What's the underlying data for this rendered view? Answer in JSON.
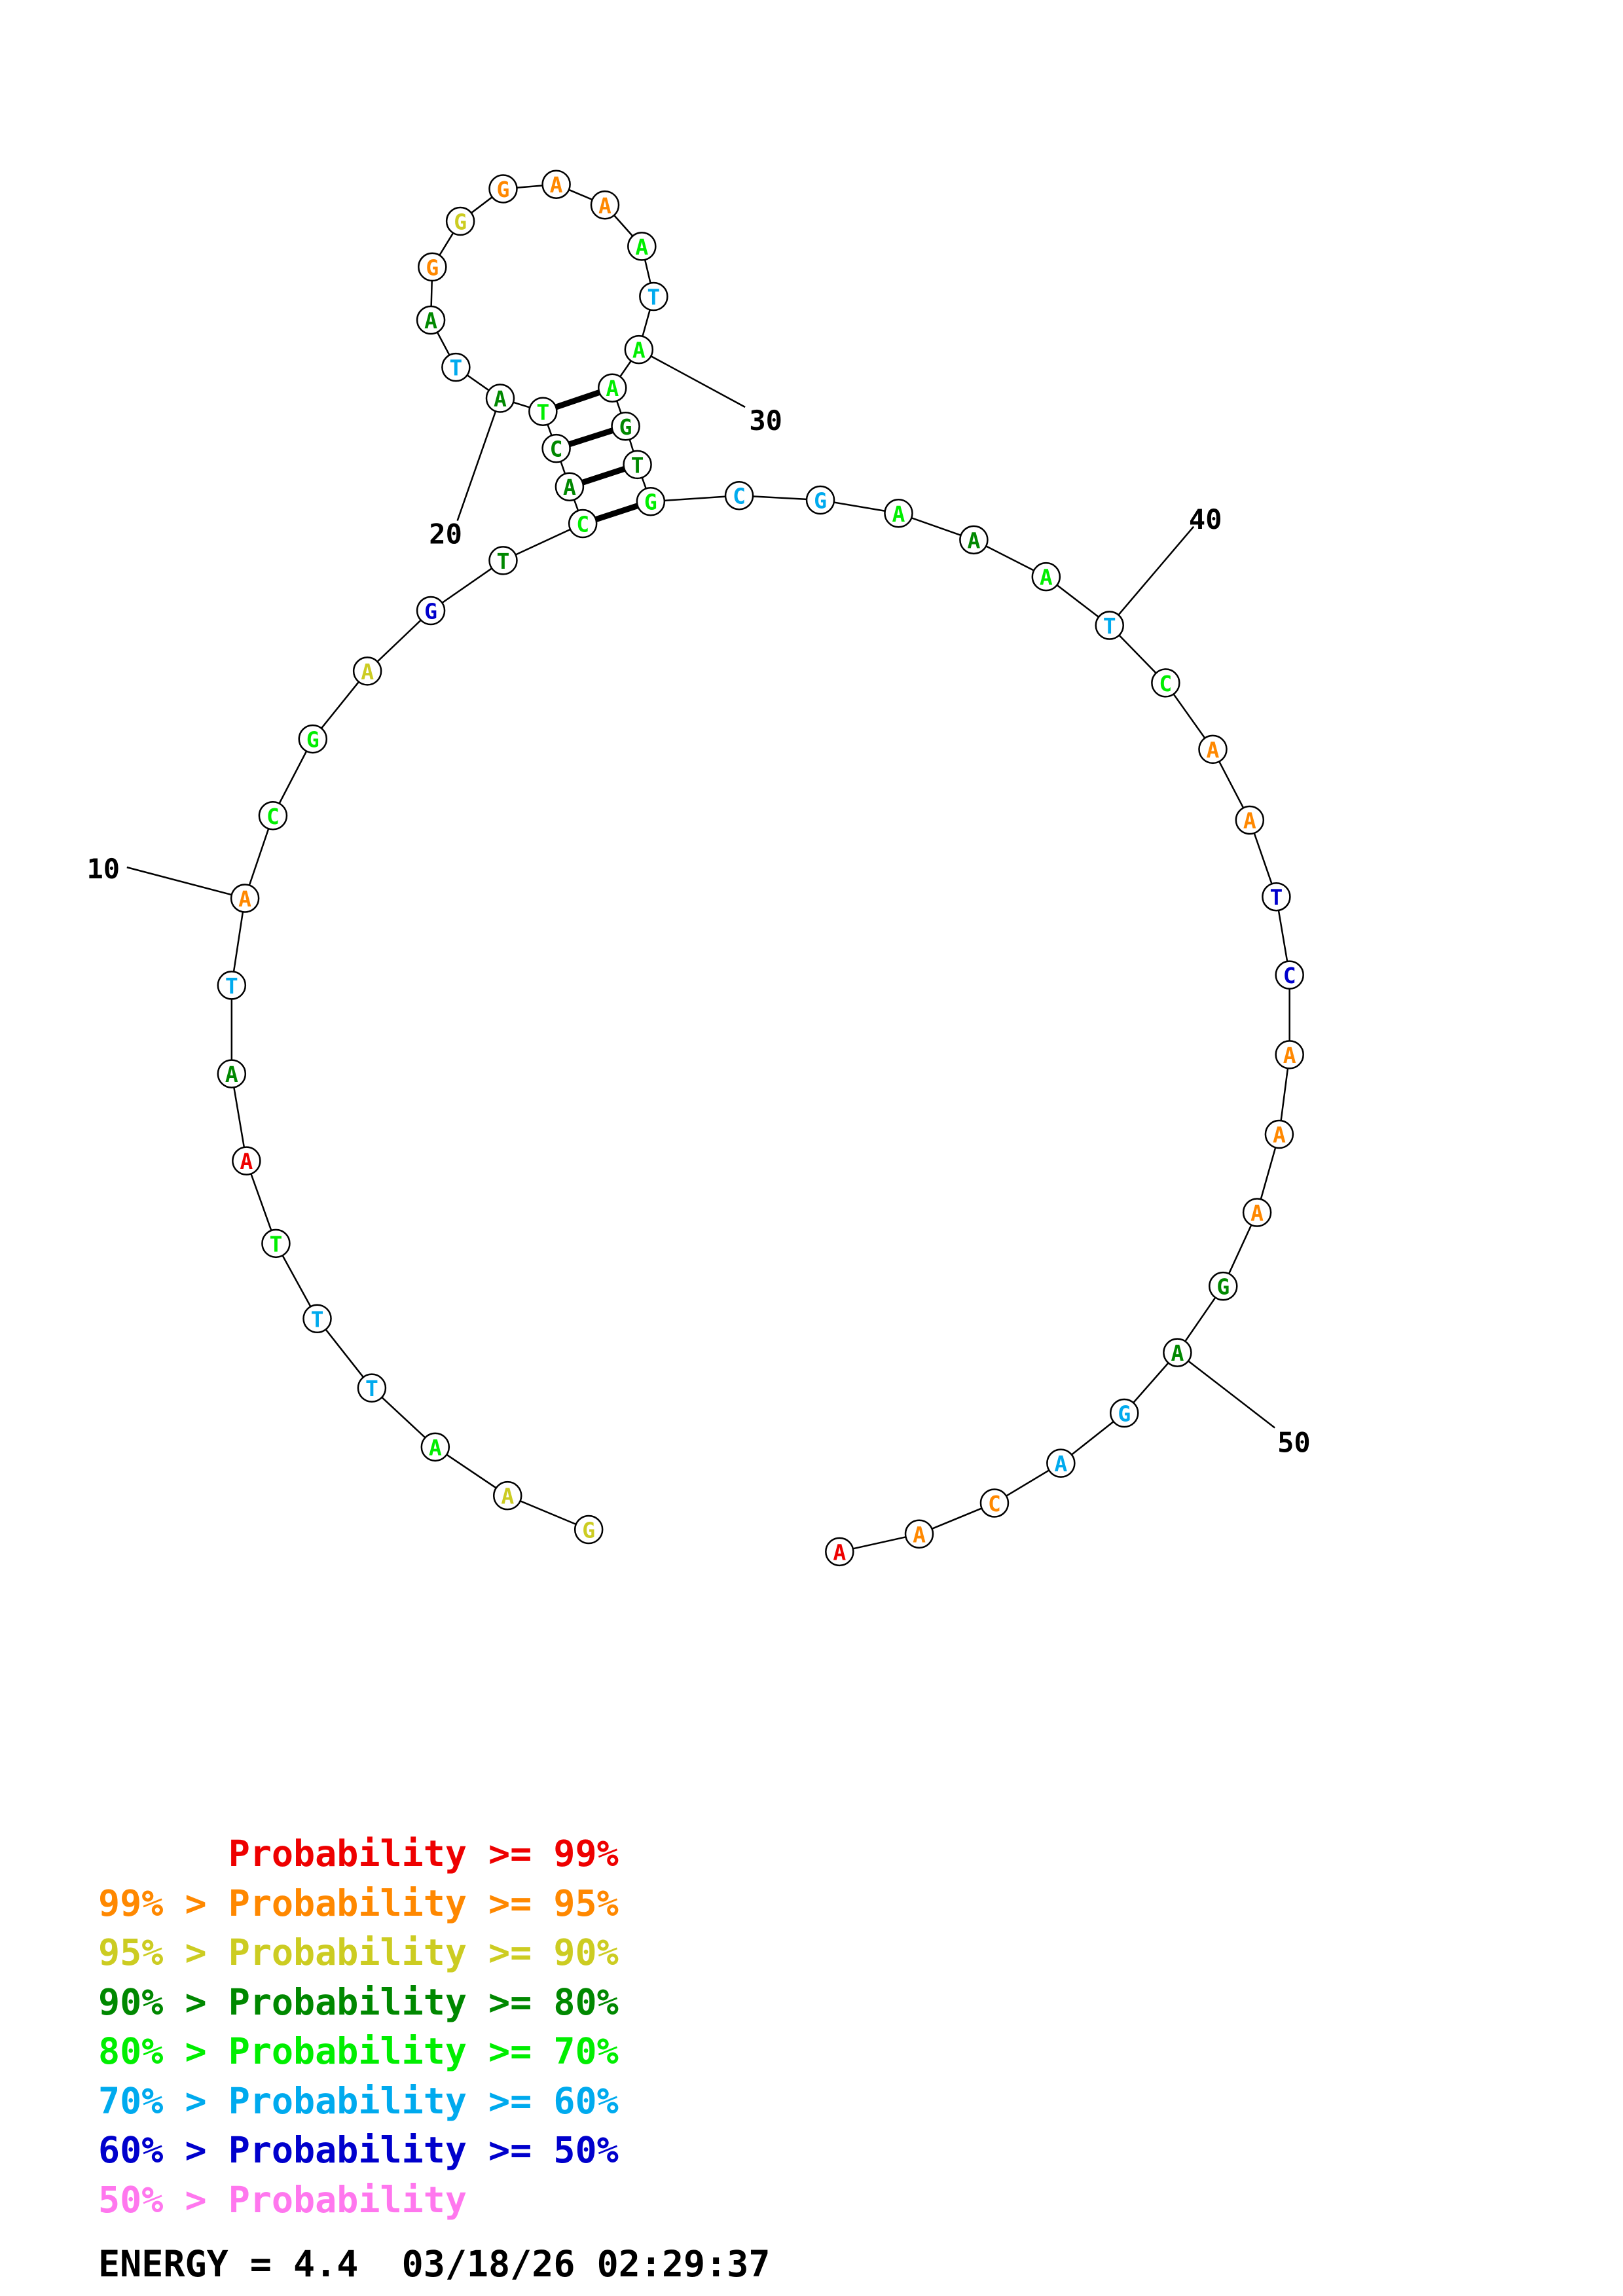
{
  "diagram": {
    "type": "rna-secondary-structure",
    "bases": [
      {
        "n": 1,
        "base": "G",
        "color": "#cccc22"
      },
      {
        "n": 2,
        "base": "A",
        "color": "#cccc22"
      },
      {
        "n": 3,
        "base": "A",
        "color": "#00ee00"
      },
      {
        "n": 4,
        "base": "T",
        "color": "#00aaee"
      },
      {
        "n": 5,
        "base": "T",
        "color": "#00aaee"
      },
      {
        "n": 6,
        "base": "T",
        "color": "#00ee00"
      },
      {
        "n": 7,
        "base": "A",
        "color": "#ee0000"
      },
      {
        "n": 8,
        "base": "A",
        "color": "#008800"
      },
      {
        "n": 9,
        "base": "T",
        "color": "#00aaee"
      },
      {
        "n": 10,
        "base": "A",
        "color": "#ff8800"
      },
      {
        "n": 11,
        "base": "C",
        "color": "#00ee00"
      },
      {
        "n": 12,
        "base": "G",
        "color": "#00ee00"
      },
      {
        "n": 13,
        "base": "A",
        "color": "#cccc22"
      },
      {
        "n": 14,
        "base": "G",
        "color": "#0000cc"
      },
      {
        "n": 15,
        "base": "T",
        "color": "#008800"
      },
      {
        "n": 16,
        "base": "C",
        "color": "#00ee00"
      },
      {
        "n": 17,
        "base": "A",
        "color": "#008800"
      },
      {
        "n": 18,
        "base": "C",
        "color": "#008800"
      },
      {
        "n": 19,
        "base": "T",
        "color": "#00ee00"
      },
      {
        "n": 20,
        "base": "A",
        "color": "#008800"
      },
      {
        "n": 21,
        "base": "T",
        "color": "#00aaee"
      },
      {
        "n": 22,
        "base": "A",
        "color": "#008800"
      },
      {
        "n": 23,
        "base": "G",
        "color": "#ff8800"
      },
      {
        "n": 24,
        "base": "G",
        "color": "#cccc22"
      },
      {
        "n": 25,
        "base": "G",
        "color": "#ff8800"
      },
      {
        "n": 26,
        "base": "A",
        "color": "#ff8800"
      },
      {
        "n": 27,
        "base": "A",
        "color": "#ff8800"
      },
      {
        "n": 28,
        "base": "A",
        "color": "#00ee00"
      },
      {
        "n": 29,
        "base": "T",
        "color": "#00aaee"
      },
      {
        "n": 30,
        "base": "A",
        "color": "#00ee00"
      },
      {
        "n": 31,
        "base": "A",
        "color": "#00ee00"
      },
      {
        "n": 32,
        "base": "G",
        "color": "#008800"
      },
      {
        "n": 33,
        "base": "T",
        "color": "#008800"
      },
      {
        "n": 34,
        "base": "G",
        "color": "#00ee00"
      },
      {
        "n": 35,
        "base": "C",
        "color": "#00aaee"
      },
      {
        "n": 36,
        "base": "G",
        "color": "#00aaee"
      },
      {
        "n": 37,
        "base": "A",
        "color": "#00ee00"
      },
      {
        "n": 38,
        "base": "A",
        "color": "#008800"
      },
      {
        "n": 39,
        "base": "A",
        "color": "#00ee00"
      },
      {
        "n": 40,
        "base": "T",
        "color": "#00aaee"
      },
      {
        "n": 41,
        "base": "C",
        "color": "#00ee00"
      },
      {
        "n": 42,
        "base": "A",
        "color": "#ff8800"
      },
      {
        "n": 43,
        "base": "A",
        "color": "#ff8800"
      },
      {
        "n": 44,
        "base": "T",
        "color": "#0000cc"
      },
      {
        "n": 45,
        "base": "C",
        "color": "#0000cc"
      },
      {
        "n": 46,
        "base": "A",
        "color": "#ff8800"
      },
      {
        "n": 47,
        "base": "A",
        "color": "#ff8800"
      },
      {
        "n": 48,
        "base": "A",
        "color": "#ff8800"
      },
      {
        "n": 49,
        "base": "G",
        "color": "#008800"
      },
      {
        "n": 50,
        "base": "A",
        "color": "#008800"
      },
      {
        "n": 51,
        "base": "G",
        "color": "#00aaee"
      },
      {
        "n": 52,
        "base": "A",
        "color": "#00aaee"
      },
      {
        "n": 53,
        "base": "C",
        "color": "#ff8800"
      },
      {
        "n": 54,
        "base": "A",
        "color": "#ff8800"
      },
      {
        "n": 55,
        "base": "A",
        "color": "#ee0000"
      }
    ],
    "pairs": [
      [
        16,
        34
      ],
      [
        17,
        33
      ],
      [
        18,
        32
      ],
      [
        19,
        31
      ]
    ],
    "position_labels": [
      "10",
      "20",
      "30",
      "40",
      "50"
    ]
  },
  "legend": [
    {
      "prefix": "    ",
      "text": "Probability >= 99%",
      "color": "#ee0000"
    },
    {
      "prefix": "99% > ",
      "text": "Probability >= 95%",
      "color": "#ff8800"
    },
    {
      "prefix": "95% > ",
      "text": "Probability >= 90%",
      "color": "#cccc22"
    },
    {
      "prefix": "90% > ",
      "text": "Probability >= 80%",
      "color": "#008800"
    },
    {
      "prefix": "80% > ",
      "text": "Probability >= 70%",
      "color": "#00ee00"
    },
    {
      "prefix": "70% > ",
      "text": "Probability >= 60%",
      "color": "#00aaee"
    },
    {
      "prefix": "60% > ",
      "text": "Probability >= 50%",
      "color": "#0000cc"
    },
    {
      "prefix": "50% > ",
      "text": "Probability",
      "color": "#ff77ee"
    }
  ],
  "footer": {
    "energy": "ENERGY = 4.4",
    "timestamp": "03/18/26 02:29:37"
  }
}
